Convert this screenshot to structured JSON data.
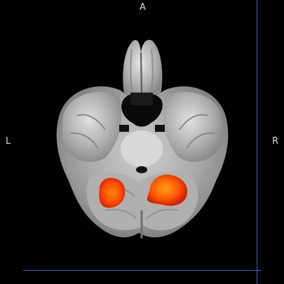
{
  "viewer": {
    "orientation": {
      "top": "A",
      "left": "L",
      "right": "R"
    },
    "plane": "axial",
    "overlay": {
      "colormap": "red-yellow",
      "clusters": 2
    },
    "colors": {
      "background": "#000000",
      "crosshair": "#3a63d6",
      "activation_low": "#e02a00",
      "activation_high": "#ff8a10"
    }
  }
}
